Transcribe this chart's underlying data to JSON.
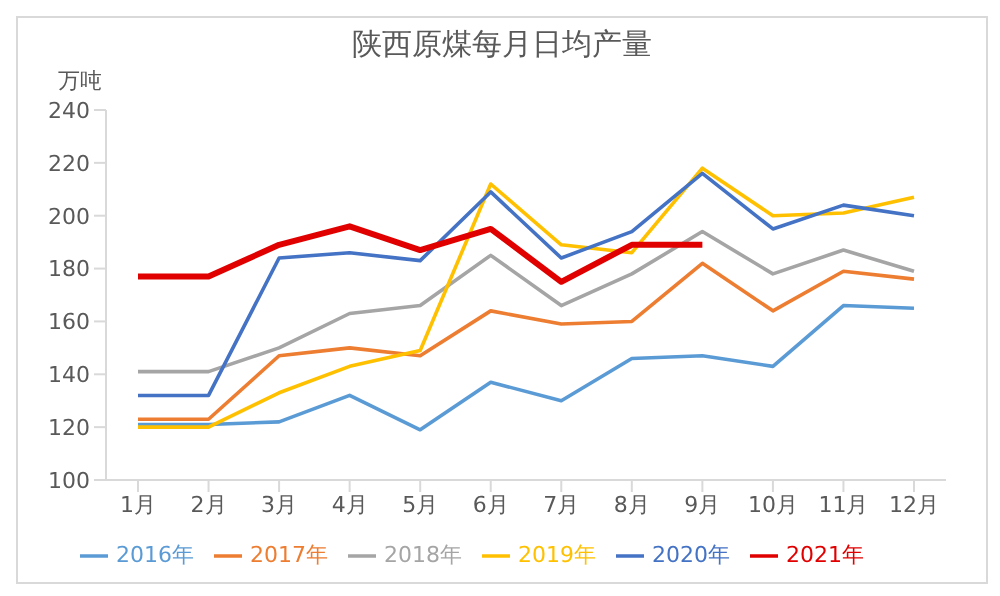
{
  "chart_data": {
    "type": "line",
    "title": "陕西原煤每月日均产量",
    "ylabel": "万吨",
    "categories": [
      "1月",
      "2月",
      "3月",
      "4月",
      "5月",
      "6月",
      "7月",
      "8月",
      "9月",
      "10月",
      "11月",
      "12月"
    ],
    "series": [
      {
        "name": "2016年",
        "color": "#5b9bd5",
        "values": [
          121,
          121,
          122,
          132,
          119,
          137,
          130,
          146,
          147,
          143,
          166,
          165
        ]
      },
      {
        "name": "2017年",
        "color": "#ed7d31",
        "values": [
          123,
          123,
          147,
          150,
          147,
          164,
          159,
          160,
          182,
          164,
          179,
          176
        ]
      },
      {
        "name": "2018年",
        "color": "#a5a5a5",
        "values": [
          141,
          141,
          150,
          163,
          166,
          185,
          166,
          178,
          194,
          178,
          187,
          179
        ]
      },
      {
        "name": "2019年",
        "color": "#ffc000",
        "values": [
          120,
          120,
          133,
          143,
          149,
          212,
          189,
          186,
          218,
          200,
          201,
          207
        ]
      },
      {
        "name": "2020年",
        "color": "#4472c4",
        "values": [
          132,
          132,
          184,
          186,
          183,
          209,
          184,
          194,
          216,
          195,
          204,
          200
        ]
      },
      {
        "name": "2021年",
        "color": "#e00000",
        "values": [
          177,
          177,
          189,
          196,
          187,
          195,
          175,
          189,
          189,
          null,
          null,
          null
        ]
      }
    ],
    "ylim": [
      100,
      240
    ],
    "yticks": [
      100,
      120,
      140,
      160,
      180,
      200,
      220,
      240
    ],
    "grid": false,
    "legend": "bottom",
    "marker": "none",
    "line_style": "solid"
  }
}
